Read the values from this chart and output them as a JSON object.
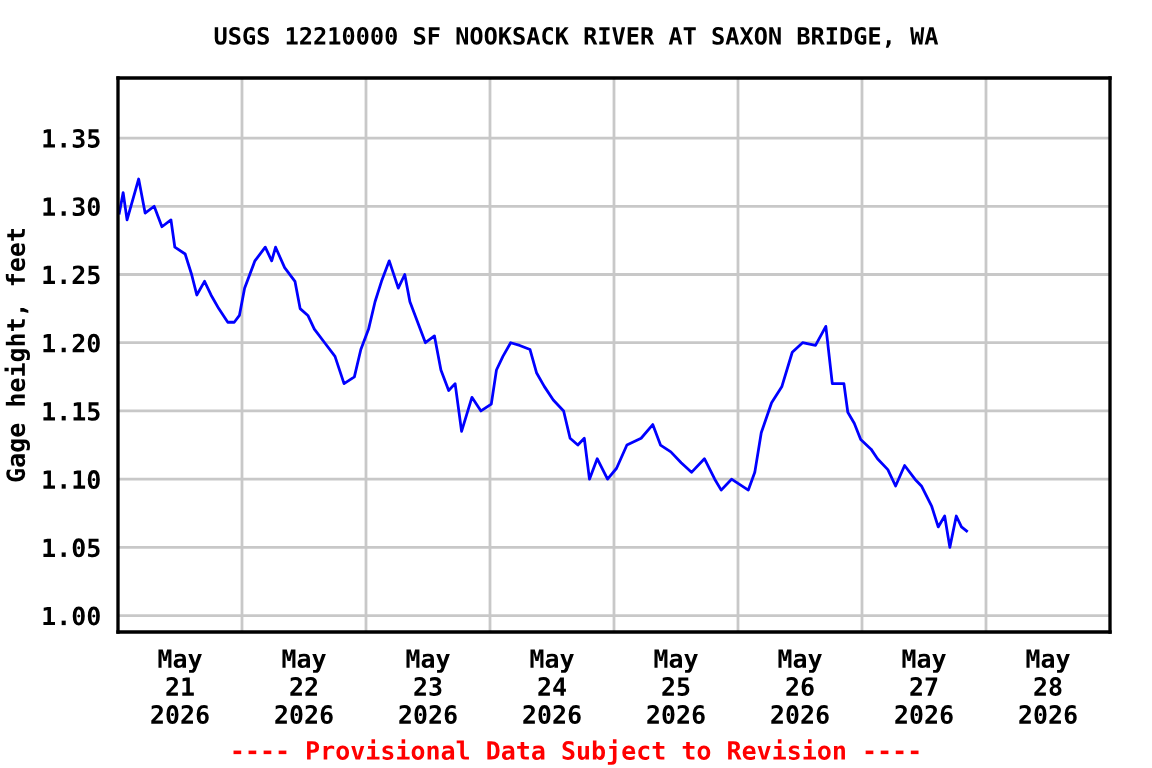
{
  "chart_data": {
    "type": "line",
    "title": "USGS 12210000 SF NOOKSACK RIVER AT SAXON BRIDGE, WA",
    "ylabel": "Gage height, feet",
    "annotations": [
      "---- Provisional Data Subject to Revision ----"
    ],
    "xlim": [
      "2026-05-21T00:00",
      "2026-05-29T00:00"
    ],
    "xticks": [
      {
        "value": "2026-05-21T12:00",
        "label": "May\n21\n2026"
      },
      {
        "value": "2026-05-22T12:00",
        "label": "May\n22\n2026"
      },
      {
        "value": "2026-05-23T12:00",
        "label": "May\n23\n2026"
      },
      {
        "value": "2026-05-24T12:00",
        "label": "May\n24\n2026"
      },
      {
        "value": "2026-05-25T12:00",
        "label": "May\n25\n2026"
      },
      {
        "value": "2026-05-26T12:00",
        "label": "May\n26\n2026"
      },
      {
        "value": "2026-05-27T12:00",
        "label": "May\n27\n2026"
      },
      {
        "value": "2026-05-28T12:00",
        "label": "May\n28\n2026"
      },
      {
        "value": "2026-05-22T00:00",
        "label": null
      },
      {
        "value": "2026-05-23T00:00",
        "label": null
      },
      {
        "value": "2026-05-24T00:00",
        "label": null
      },
      {
        "value": "2026-05-25T00:00",
        "label": null
      },
      {
        "value": "2026-05-26T00:00",
        "label": null
      },
      {
        "value": "2026-05-27T00:00",
        "label": null
      },
      {
        "value": "2026-05-28T00:00",
        "label": null
      }
    ],
    "ylim": [
      0.988,
      1.394
    ],
    "yticks": [
      {
        "value": 1.0,
        "label": "1.00"
      },
      1.05,
      {
        "value": 1.1,
        "label": "1.10"
      },
      1.15,
      {
        "value": 1.2,
        "label": "1.20"
      },
      1.25,
      {
        "value": 1.3,
        "label": "1.30"
      },
      1.35
    ],
    "grid": true,
    "line_style": "solid",
    "marker": "none",
    "series": [
      {
        "color": "#0000ff",
        "x": [
          "2026-05-21T00:15",
          "2026-05-21T01:00",
          "2026-05-21T01:45",
          "2026-05-21T03:15",
          "2026-05-21T04:00",
          "2026-05-21T05:15",
          "2026-05-21T07:00",
          "2026-05-21T08:30",
          "2026-05-21T10:15",
          "2026-05-21T11:00",
          "2026-05-21T13:00",
          "2026-05-21T14:15",
          "2026-05-21T15:15",
          "2026-05-21T16:45",
          "2026-05-21T18:00",
          "2026-05-21T19:30",
          "2026-05-21T21:15",
          "2026-05-21T22:30",
          "2026-05-21T23:30",
          "2026-05-22T00:30",
          "2026-05-22T02:30",
          "2026-05-22T04:30",
          "2026-05-22T05:45",
          "2026-05-22T06:30",
          "2026-05-22T08:15",
          "2026-05-22T10:15",
          "2026-05-22T11:15",
          "2026-05-22T12:45",
          "2026-05-22T14:00",
          "2026-05-22T16:00",
          "2026-05-22T18:00",
          "2026-05-22T19:45",
          "2026-05-22T21:45",
          "2026-05-22T23:00",
          "2026-05-23T00:30",
          "2026-05-23T01:45",
          "2026-05-23T03:00",
          "2026-05-23T04:30",
          "2026-05-23T06:15",
          "2026-05-23T07:30",
          "2026-05-23T08:30",
          "2026-05-23T10:00",
          "2026-05-23T11:30",
          "2026-05-23T13:15",
          "2026-05-23T14:30",
          "2026-05-23T16:00",
          "2026-05-23T17:15",
          "2026-05-23T18:30",
          "2026-05-23T20:30",
          "2026-05-23T22:15",
          "2026-05-24T00:15",
          "2026-05-24T01:15",
          "2026-05-24T02:30",
          "2026-05-24T04:00",
          "2026-05-24T05:45",
          "2026-05-24T07:45",
          "2026-05-24T09:00",
          "2026-05-24T10:30",
          "2026-05-24T12:15",
          "2026-05-24T14:15",
          "2026-05-24T15:30",
          "2026-05-24T17:00",
          "2026-05-24T18:15",
          "2026-05-24T19:15",
          "2026-05-24T20:45",
          "2026-05-24T22:45",
          "2026-05-25T00:30",
          "2026-05-25T02:30",
          "2026-05-25T05:15",
          "2026-05-25T07:30",
          "2026-05-25T09:00",
          "2026-05-25T11:00",
          "2026-05-25T13:00",
          "2026-05-25T15:00",
          "2026-05-25T17:30",
          "2026-05-25T19:30",
          "2026-05-25T20:45",
          "2026-05-25T22:45",
          "2026-05-26T02:00",
          "2026-05-26T03:15",
          "2026-05-26T04:30",
          "2026-05-26T06:30",
          "2026-05-26T08:30",
          "2026-05-26T10:30",
          "2026-05-26T12:30",
          "2026-05-26T15:00",
          "2026-05-26T17:00",
          "2026-05-26T18:15",
          "2026-05-26T20:30",
          "2026-05-26T21:15",
          "2026-05-26T22:30",
          "2026-05-26T23:45",
          "2026-05-27T01:45",
          "2026-05-27T03:00",
          "2026-05-27T05:00",
          "2026-05-27T06:30",
          "2026-05-27T08:15",
          "2026-05-27T10:15",
          "2026-05-27T11:30",
          "2026-05-27T13:30",
          "2026-05-27T14:45",
          "2026-05-27T16:00",
          "2026-05-27T17:00",
          "2026-05-27T18:15",
          "2026-05-27T19:15",
          "2026-05-27T20:15"
        ],
        "values": [
          1.295,
          1.31,
          1.29,
          1.31,
          1.32,
          1.295,
          1.3,
          1.285,
          1.29,
          1.27,
          1.265,
          1.25,
          1.235,
          1.245,
          1.235,
          1.225,
          1.215,
          1.215,
          1.22,
          1.24,
          1.26,
          1.27,
          1.26,
          1.27,
          1.255,
          1.245,
          1.225,
          1.22,
          1.21,
          1.2,
          1.19,
          1.17,
          1.175,
          1.195,
          1.21,
          1.23,
          1.245,
          1.26,
          1.24,
          1.25,
          1.23,
          1.215,
          1.2,
          1.205,
          1.18,
          1.165,
          1.17,
          1.135,
          1.16,
          1.15,
          1.155,
          1.18,
          1.19,
          1.2,
          1.198,
          1.195,
          1.178,
          1.168,
          1.158,
          1.15,
          1.13,
          1.125,
          1.13,
          1.1,
          1.115,
          1.1,
          1.108,
          1.125,
          1.13,
          1.14,
          1.125,
          1.12,
          1.112,
          1.105,
          1.115,
          1.1,
          1.092,
          1.1,
          1.092,
          1.105,
          1.134,
          1.156,
          1.168,
          1.193,
          1.2,
          1.198,
          1.212,
          1.17,
          1.17,
          1.149,
          1.141,
          1.129,
          1.122,
          1.115,
          1.107,
          1.095,
          1.11,
          1.1,
          1.095,
          1.08,
          1.065,
          1.073,
          1.05,
          1.073,
          1.065,
          1.062
        ]
      }
    ]
  }
}
